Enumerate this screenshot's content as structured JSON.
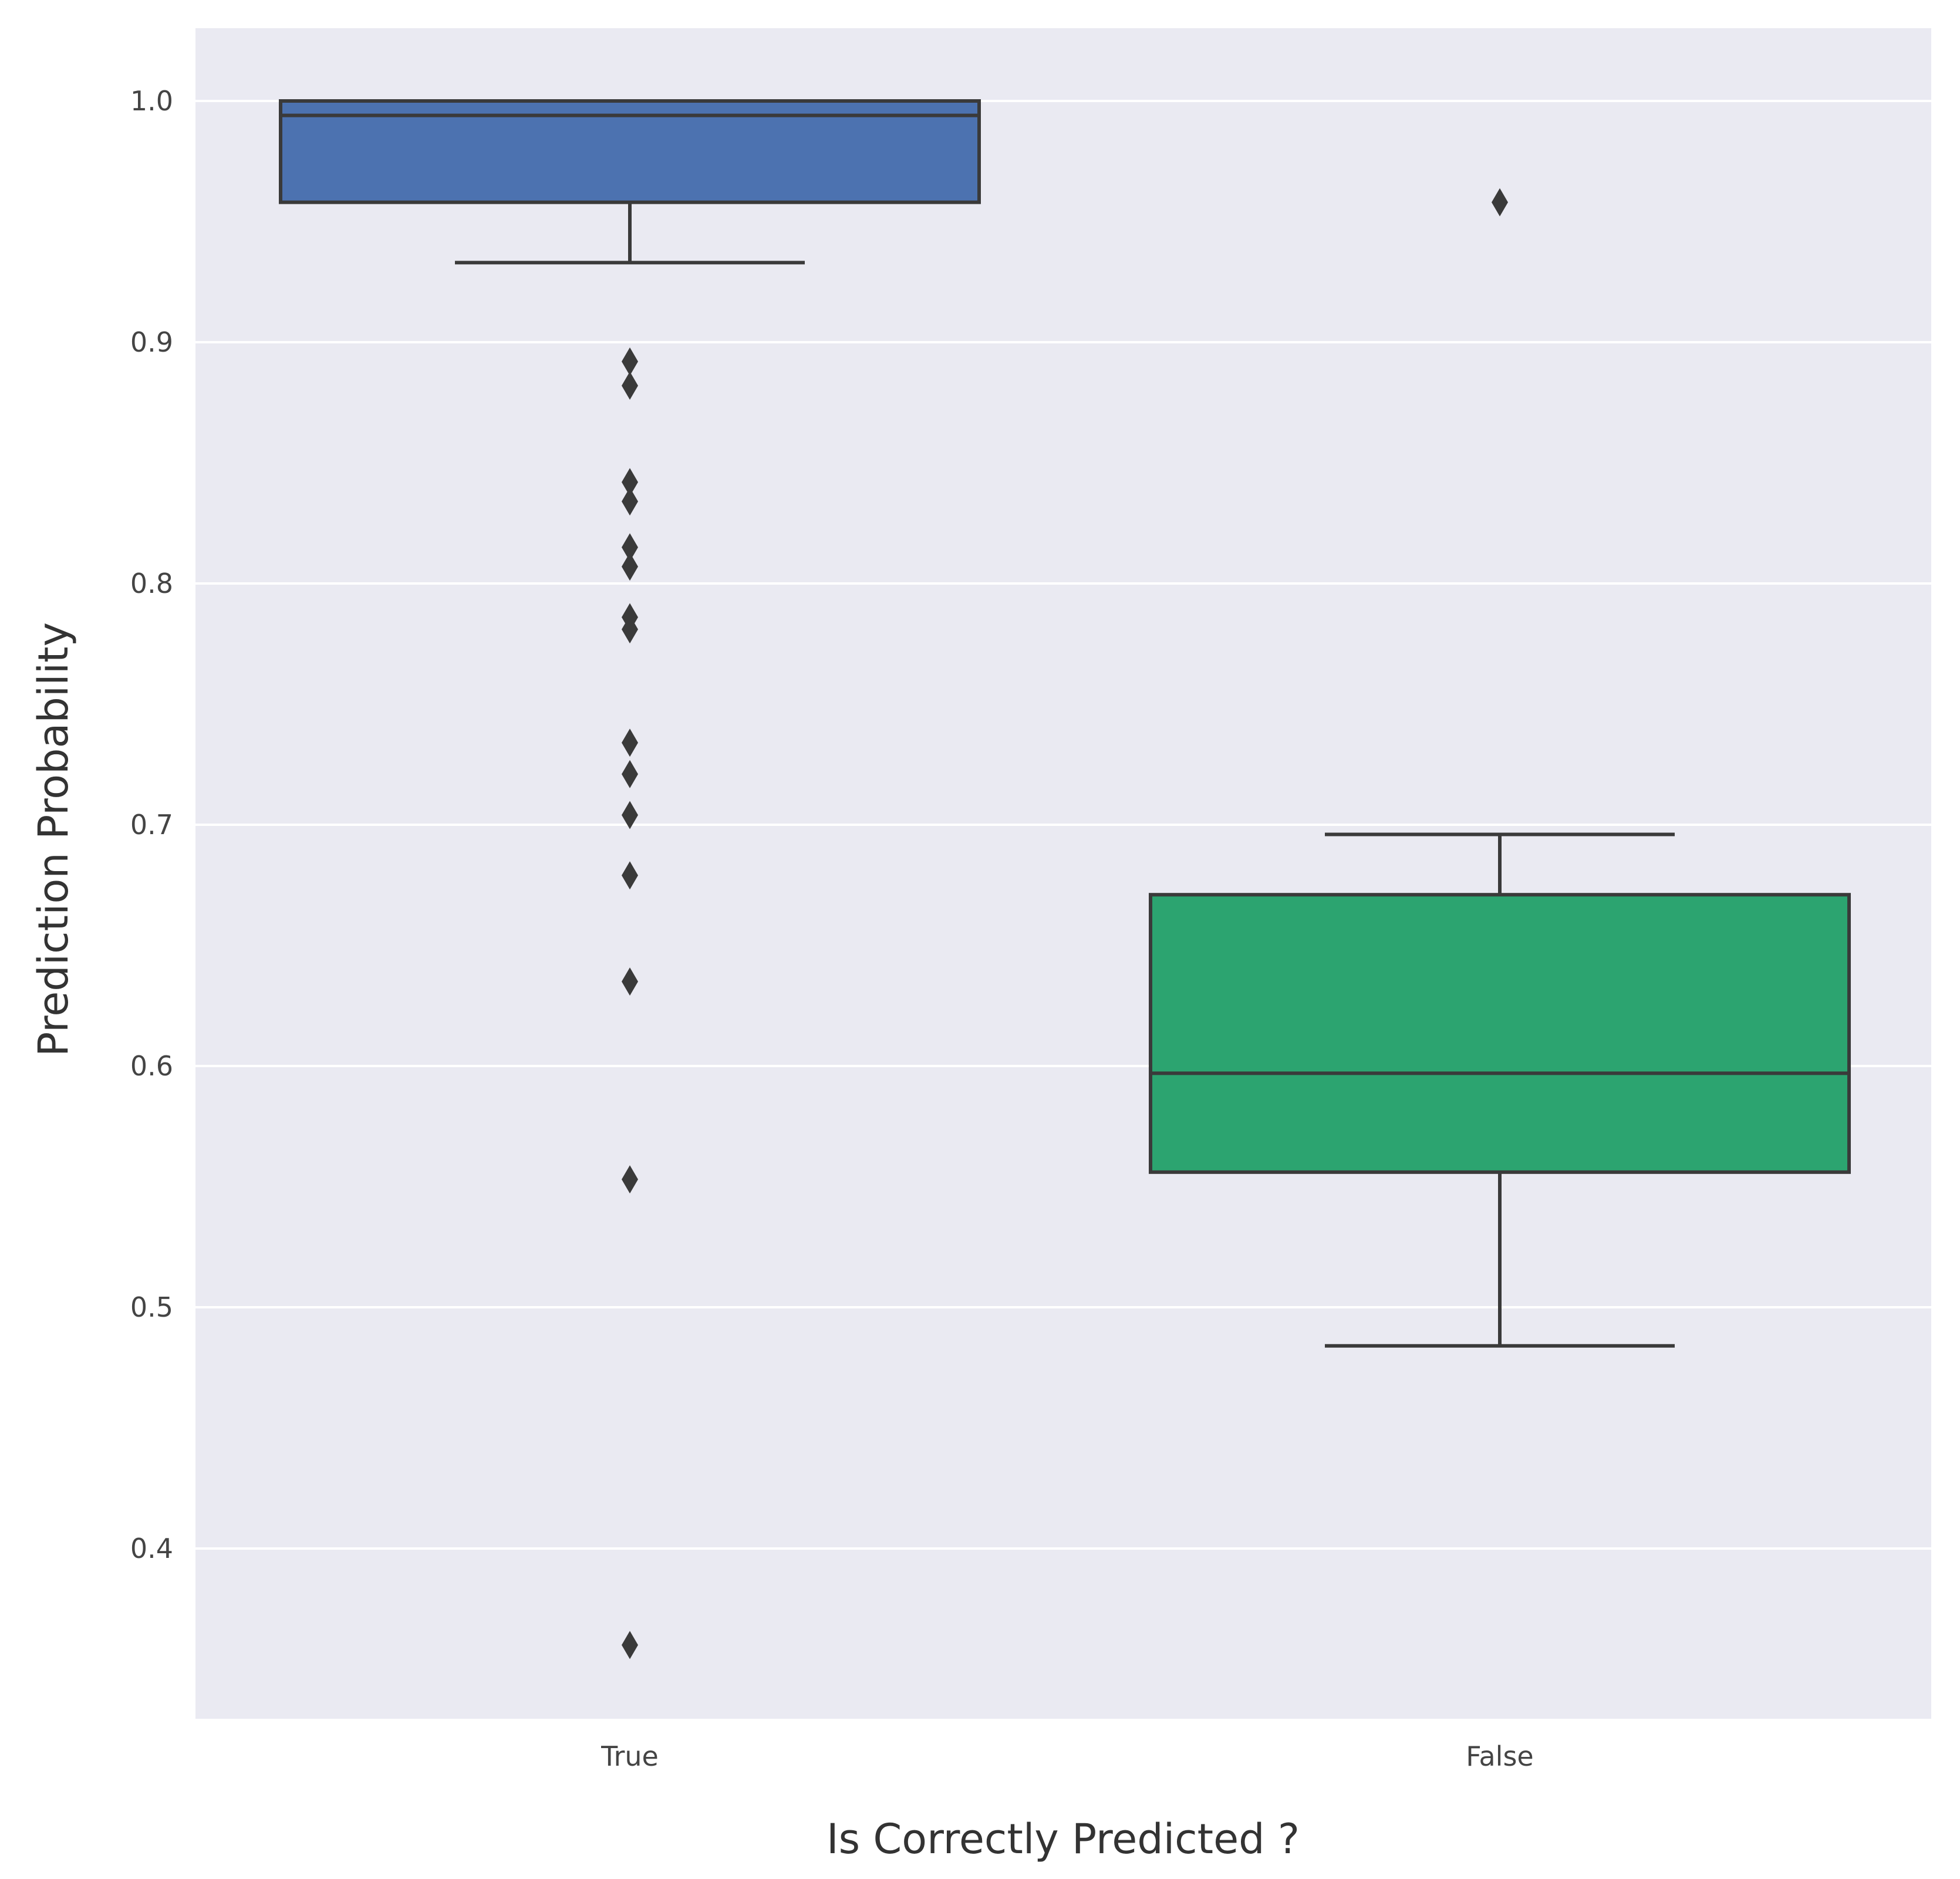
{
  "chart_data": {
    "type": "box",
    "title": "",
    "xlabel": "Is Correctly Predicted ?",
    "ylabel": "Prediction Probability",
    "ylim": [
      0.33,
      1.032
    ],
    "yticks": [
      0.4,
      0.5,
      0.6,
      0.7,
      0.8,
      0.9,
      1.0
    ],
    "ytick_labels": [
      "0.4",
      "0.5",
      "0.6",
      "0.7",
      "0.8",
      "0.9",
      "1.0"
    ],
    "grid": true,
    "legend": "none",
    "categories": [
      "True",
      "False"
    ],
    "boxes": [
      {
        "category": "True",
        "color": "#4c72b0",
        "whisker_low": 0.933,
        "q1": 0.958,
        "median": 0.994,
        "q3": 1.0,
        "whisker_high": 1.0,
        "outliers": [
          0.892,
          0.882,
          0.842,
          0.834,
          0.815,
          0.807,
          0.786,
          0.781,
          0.734,
          0.721,
          0.704,
          0.679,
          0.635,
          0.553,
          0.36
        ]
      },
      {
        "category": "False",
        "color": "#2ca470",
        "whisker_low": 0.484,
        "q1": 0.556,
        "median": 0.597,
        "q3": 0.671,
        "whisker_high": 0.696,
        "outliers": [
          0.958
        ]
      }
    ]
  },
  "colors": {
    "plot_background": "#eaeaf2",
    "gridline": "#ffffff",
    "line": "#3a3a3a"
  }
}
